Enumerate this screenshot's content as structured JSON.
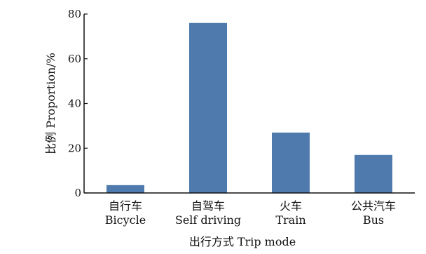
{
  "chart_data": {
    "type": "bar",
    "categories": [
      "自行车",
      "自驾车",
      "火车",
      "公共汽车"
    ],
    "categories_en": [
      "Bicycle",
      "Self driving",
      "Train",
      "Bus"
    ],
    "values": [
      3.5,
      76,
      27,
      17
    ],
    "xlabel": "出行方式 Trip mode",
    "ylabel": "比例 Proportion/%",
    "ylim": [
      0,
      80
    ],
    "yticks": [
      0,
      20,
      40,
      60,
      80
    ],
    "bar_color": "#4f7aad",
    "grid": false
  }
}
